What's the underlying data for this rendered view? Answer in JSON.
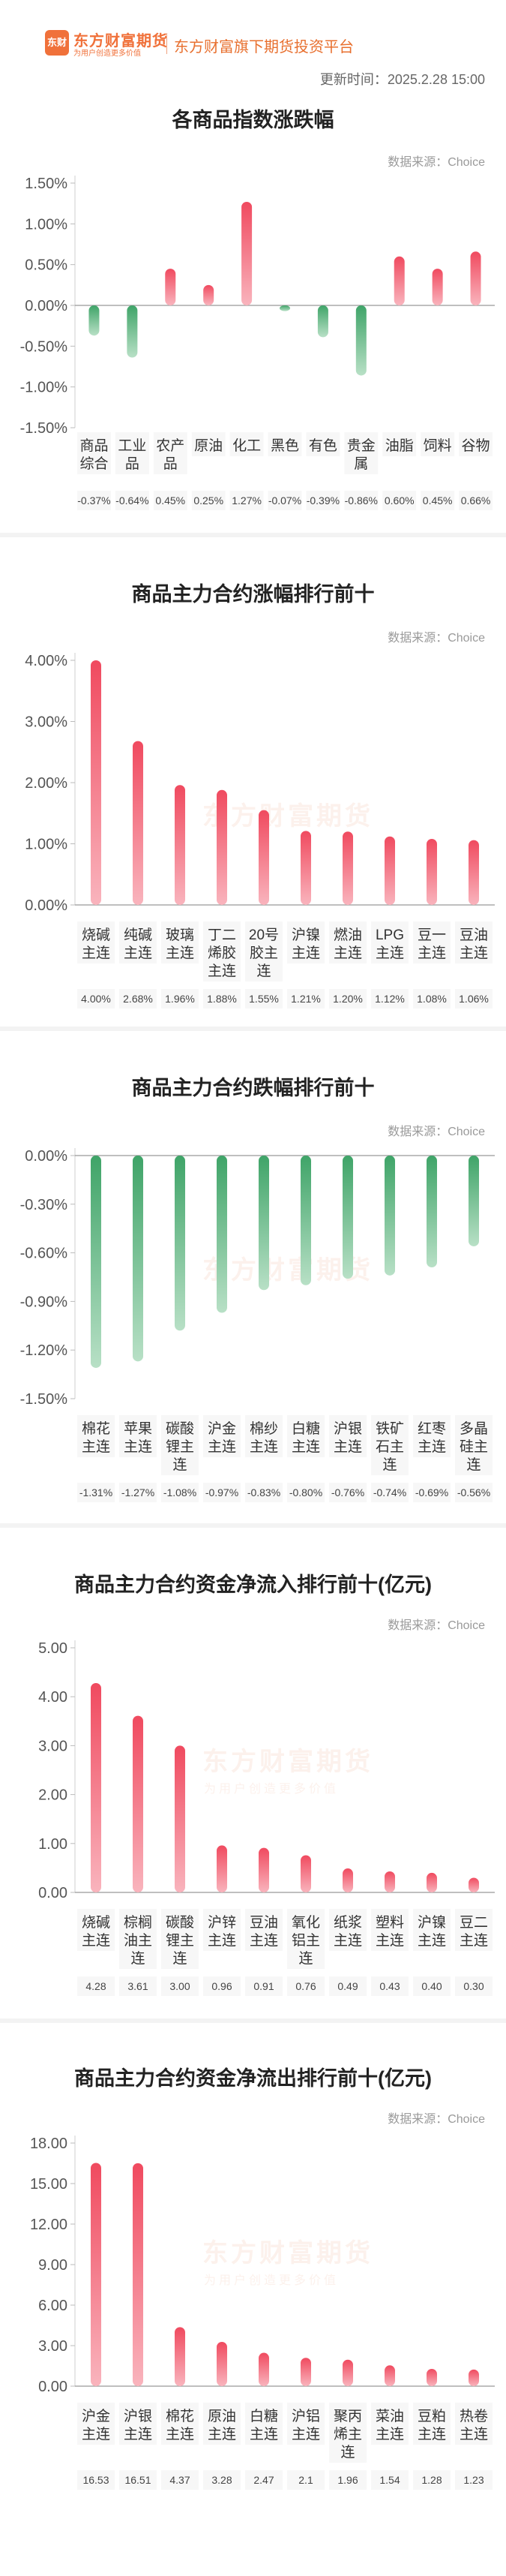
{
  "header": {
    "logo_icon": "东财",
    "logo_name": "东方财富期货",
    "logo_tagline": "为用户创造更多价值",
    "platform": "东方财富旗下期货投资平台",
    "update_time": "更新时间：2025.2.28 15:00"
  },
  "source_label": "数据来源：Choice",
  "colors": {
    "up": "#f04a5f",
    "down": "#3fa468",
    "accent": "#f0713a"
  },
  "chart_data": [
    {
      "type": "bar",
      "title": "各商品指数涨跌幅",
      "unit": "%",
      "ylim": [
        -1.5,
        1.5
      ],
      "yticks": [
        "1.50%",
        "1.00%",
        "0.50%",
        "0.00%",
        "-0.50%",
        "-1.00%",
        "-1.50%"
      ],
      "categories": [
        "商品\n综合",
        "工业\n品",
        "农产\n品",
        "原油",
        "化工",
        "黑色",
        "有色",
        "贵金\n属",
        "油脂",
        "饲料",
        "谷物"
      ],
      "values": [
        -0.37,
        -0.64,
        0.45,
        0.25,
        1.27,
        -0.07,
        -0.39,
        -0.86,
        0.6,
        0.45,
        0.66
      ],
      "labels": [
        "-0.37%",
        "-0.64%",
        "0.45%",
        "0.25%",
        "1.27%",
        "-0.07%",
        "-0.39%",
        "-0.86%",
        "0.60%",
        "0.45%",
        "0.66%"
      ],
      "grid": false
    },
    {
      "type": "bar",
      "title": "商品主力合约涨幅排行前十",
      "unit": "%",
      "ylim": [
        0,
        4.0
      ],
      "yticks": [
        "4.00%",
        "3.00%",
        "2.00%",
        "1.00%",
        "0.00%"
      ],
      "categories": [
        "烧碱\n主连",
        "纯碱\n主连",
        "玻璃\n主连",
        "丁二\n烯胶\n主连",
        "20号\n胶主\n连",
        "沪镍\n主连",
        "燃油\n主连",
        "LPG\n主连",
        "豆一\n主连",
        "豆油\n主连"
      ],
      "values": [
        4.0,
        2.68,
        1.96,
        1.88,
        1.55,
        1.21,
        1.2,
        1.12,
        1.08,
        1.06
      ],
      "labels": [
        "4.00%",
        "2.68%",
        "1.96%",
        "1.88%",
        "1.55%",
        "1.21%",
        "1.20%",
        "1.12%",
        "1.08%",
        "1.06%"
      ],
      "grid": false
    },
    {
      "type": "bar",
      "title": "商品主力合约跌幅排行前十",
      "unit": "%",
      "ylim": [
        -1.5,
        0
      ],
      "yticks": [
        "0.00%",
        "-0.30%",
        "-0.60%",
        "-0.90%",
        "-1.20%",
        "-1.50%"
      ],
      "categories": [
        "棉花\n主连",
        "苹果\n主连",
        "碳酸\n锂主\n连",
        "沪金\n主连",
        "棉纱\n主连",
        "白糖\n主连",
        "沪银\n主连",
        "铁矿\n石主\n连",
        "红枣\n主连",
        "多晶\n硅主\n连"
      ],
      "values": [
        -1.31,
        -1.27,
        -1.08,
        -0.97,
        -0.83,
        -0.8,
        -0.76,
        -0.74,
        -0.69,
        -0.56
      ],
      "labels": [
        "-1.31%",
        "-1.27%",
        "-1.08%",
        "-0.97%",
        "-0.83%",
        "-0.80%",
        "-0.76%",
        "-0.74%",
        "-0.69%",
        "-0.56%"
      ],
      "grid": false
    },
    {
      "type": "bar",
      "title": "商品主力合约资金净流入排行前十(亿元)",
      "unit": "亿元",
      "ylim": [
        0,
        5.0
      ],
      "yticks": [
        "5.00",
        "4.00",
        "3.00",
        "2.00",
        "1.00",
        "0.00"
      ],
      "categories": [
        "烧碱\n主连",
        "棕榈\n油主\n连",
        "碳酸\n锂主\n连",
        "沪锌\n主连",
        "豆油\n主连",
        "氧化\n铝主\n连",
        "纸浆\n主连",
        "塑料\n主连",
        "沪镍\n主连",
        "豆二\n主连"
      ],
      "values": [
        4.28,
        3.61,
        3.0,
        0.96,
        0.91,
        0.76,
        0.49,
        0.43,
        0.4,
        0.3
      ],
      "labels": [
        "4.28",
        "3.61",
        "3.00",
        "0.96",
        "0.91",
        "0.76",
        "0.49",
        "0.43",
        "0.40",
        "0.30"
      ],
      "grid": false
    },
    {
      "type": "bar",
      "title": "商品主力合约资金净流出排行前十(亿元)",
      "unit": "亿元",
      "ylim": [
        0,
        18.0
      ],
      "yticks": [
        "18.00",
        "15.00",
        "12.00",
        "9.00",
        "6.00",
        "3.00",
        "0.00"
      ],
      "categories": [
        "沪金\n主连",
        "沪银\n主连",
        "棉花\n主连",
        "原油\n主连",
        "白糖\n主连",
        "沪铝\n主连",
        "聚丙\n烯主\n连",
        "菜油\n主连",
        "豆粕\n主连",
        "热卷\n主连"
      ],
      "values": [
        16.53,
        16.51,
        4.37,
        3.28,
        2.47,
        2.1,
        1.96,
        1.54,
        1.28,
        1.23
      ],
      "labels": [
        "16.53",
        "16.51",
        "4.37",
        "3.28",
        "2.47",
        "2.1",
        "1.96",
        "1.54",
        "1.28",
        "1.23"
      ],
      "grid": false
    }
  ]
}
